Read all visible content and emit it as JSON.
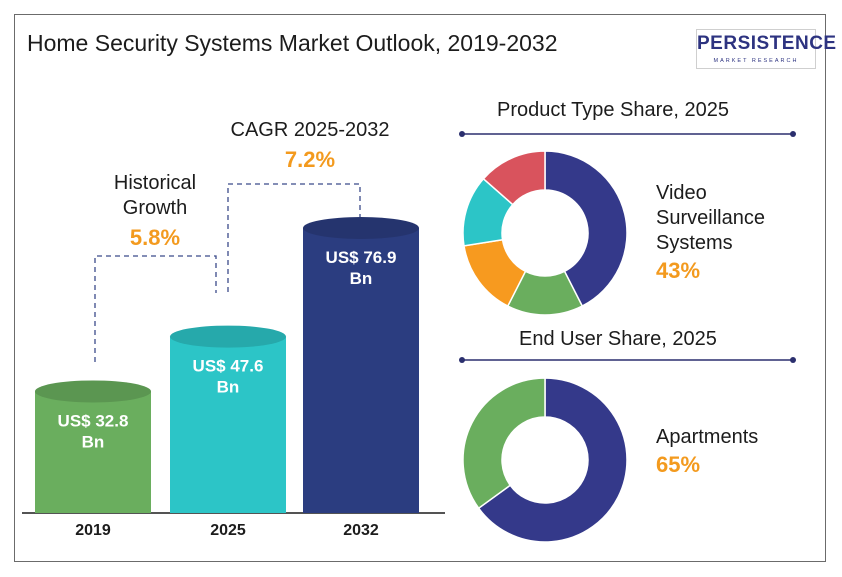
{
  "title": "Home Security Systems Market Outlook, 2019-2032",
  "logo": {
    "word": "PERSISTENCE",
    "subtitle": "MARKET RESEARCH"
  },
  "colors": {
    "bar_2019": "#6aae5e",
    "bar_2025": "#2cc5c7",
    "bar_2032": "#2b3d80",
    "accent": "#f39a1e",
    "donut": [
      "#34398a",
      "#6aae5e",
      "#f79a1f",
      "#2cc5c7",
      "#d9535d"
    ]
  },
  "chart_data": [
    {
      "type": "bar",
      "categories": [
        "2019",
        "2025",
        "2032"
      ],
      "values": [
        32.8,
        47.6,
        76.9
      ],
      "value_labels": [
        "US$ 32.8 Bn",
        "US$ 47.6 Bn",
        "US$ 76.9 Bn"
      ],
      "annotations": [
        {
          "label": "Historical Growth",
          "value": "5.8%"
        },
        {
          "label": "CAGR 2025-2032",
          "value": "7.2%"
        }
      ]
    },
    {
      "type": "pie",
      "title": "Product Type Share, 2025",
      "slices": [
        42.5,
        15,
        15,
        14,
        13.5
      ],
      "highlight": {
        "label": "Video Surveillance Systems",
        "value": "43%"
      }
    },
    {
      "type": "pie",
      "title": "End User Share, 2025",
      "slices": [
        65,
        35
      ],
      "highlight": {
        "label": "Apartments",
        "value": "65%"
      }
    }
  ]
}
